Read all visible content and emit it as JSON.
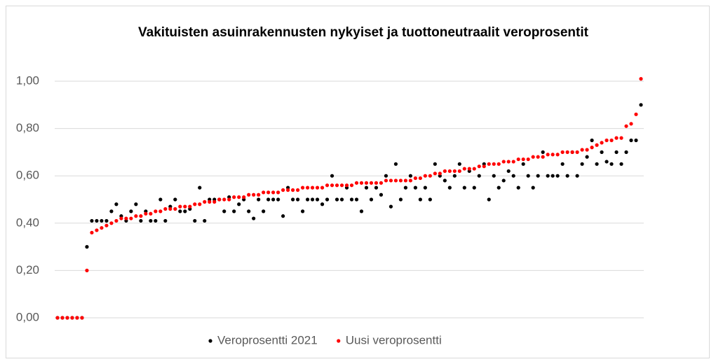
{
  "chart_data": {
    "type": "scatter",
    "title": "Vakituisten asuinrakennusten nykyiset ja tuottoneutraalit veroprosentit",
    "categories": [
      null,
      null,
      null,
      null,
      null,
      null,
      null,
      null,
      null,
      null,
      null,
      null,
      null,
      null,
      null,
      null,
      null,
      null,
      null,
      null,
      null,
      null,
      null,
      null,
      null,
      null,
      null,
      null,
      null,
      null,
      null,
      null,
      null,
      null,
      null,
      null,
      null,
      null,
      null,
      null,
      null,
      null,
      null,
      null,
      null,
      null,
      null,
      null,
      null,
      null,
      null,
      null,
      null,
      null,
      null,
      null,
      null,
      null,
      null,
      null,
      null,
      null,
      null,
      null,
      null,
      null,
      null,
      null,
      null,
      null,
      null,
      null,
      null,
      null,
      null,
      null,
      null,
      null,
      null,
      null,
      null,
      null,
      null,
      null,
      null,
      null,
      null,
      null,
      null,
      null,
      null,
      null,
      null,
      null,
      null,
      null,
      null,
      null,
      null,
      null,
      null,
      null,
      null,
      null,
      null,
      null,
      null,
      null,
      null,
      null,
      null,
      null,
      null,
      null,
      null,
      null,
      null,
      null,
      null,
      null
    ],
    "series": [
      {
        "name": "Veroprosentti 2021",
        "color": "#000000",
        "values": [
          0,
          0,
          0,
          0,
          0,
          0,
          0.3,
          0.41,
          0.41,
          0.41,
          0.41,
          0.45,
          0.48,
          0.43,
          0.41,
          0.45,
          0.48,
          0.41,
          0.45,
          0.41,
          0.41,
          0.5,
          0.41,
          0.47,
          0.5,
          0.45,
          0.45,
          0.46,
          0.41,
          0.55,
          0.41,
          0.5,
          0.5,
          0.5,
          0.45,
          0.51,
          0.45,
          0.48,
          0.5,
          0.45,
          0.42,
          0.5,
          0.45,
          0.5,
          0.5,
          0.5,
          0.43,
          0.55,
          0.5,
          0.5,
          0.45,
          0.5,
          0.5,
          0.5,
          0.48,
          0.5,
          0.6,
          0.5,
          0.5,
          0.55,
          0.5,
          0.5,
          0.45,
          0.55,
          0.5,
          0.55,
          0.52,
          0.6,
          0.47,
          0.65,
          0.5,
          0.55,
          0.6,
          0.55,
          0.5,
          0.55,
          0.5,
          0.65,
          0.6,
          0.58,
          0.55,
          0.6,
          0.65,
          0.55,
          0.62,
          0.55,
          0.6,
          0.65,
          0.5,
          0.6,
          0.55,
          0.58,
          0.62,
          0.6,
          0.55,
          0.65,
          0.6,
          0.55,
          0.6,
          0.7,
          0.6,
          0.6,
          0.6,
          0.65,
          0.6,
          0.7,
          0.6,
          0.65,
          0.68,
          0.75,
          0.65,
          0.7,
          0.66,
          0.65,
          0.7,
          0.65,
          0.7,
          0.75,
          0.75,
          0.9
        ]
      },
      {
        "name": "Uusi veroprosentti",
        "color": "#ff0000",
        "values": [
          0,
          0,
          0,
          0,
          0,
          0,
          0.2,
          0.36,
          0.37,
          0.38,
          0.39,
          0.4,
          0.41,
          0.42,
          0.42,
          0.42,
          0.43,
          0.43,
          0.44,
          0.44,
          0.45,
          0.45,
          0.46,
          0.46,
          0.46,
          0.47,
          0.47,
          0.47,
          0.48,
          0.48,
          0.49,
          0.49,
          0.49,
          0.5,
          0.5,
          0.5,
          0.51,
          0.51,
          0.51,
          0.52,
          0.52,
          0.52,
          0.53,
          0.53,
          0.53,
          0.53,
          0.54,
          0.54,
          0.54,
          0.54,
          0.55,
          0.55,
          0.55,
          0.55,
          0.55,
          0.56,
          0.56,
          0.56,
          0.56,
          0.56,
          0.56,
          0.57,
          0.57,
          0.57,
          0.57,
          0.57,
          0.57,
          0.58,
          0.58,
          0.58,
          0.58,
          0.58,
          0.58,
          0.59,
          0.59,
          0.6,
          0.6,
          0.61,
          0.61,
          0.62,
          0.62,
          0.62,
          0.62,
          0.63,
          0.63,
          0.63,
          0.64,
          0.64,
          0.65,
          0.65,
          0.65,
          0.66,
          0.66,
          0.66,
          0.67,
          0.67,
          0.67,
          0.68,
          0.68,
          0.68,
          0.69,
          0.69,
          0.69,
          0.7,
          0.7,
          0.7,
          0.7,
          0.71,
          0.71,
          0.72,
          0.73,
          0.74,
          0.75,
          0.75,
          0.76,
          0.76,
          0.81,
          0.82,
          0.86,
          1.01
        ]
      }
    ],
    "ylim": [
      0,
      1
    ],
    "yticks": [
      {
        "value": 0,
        "label": "0,00"
      },
      {
        "value": 0.2,
        "label": "0,20"
      },
      {
        "value": 0.4,
        "label": "0,40"
      },
      {
        "value": 0.6,
        "label": "0,60"
      },
      {
        "value": 0.8,
        "label": "0,80"
      },
      {
        "value": 1,
        "label": "1,00"
      }
    ],
    "grid": true,
    "legend": "bottom"
  }
}
